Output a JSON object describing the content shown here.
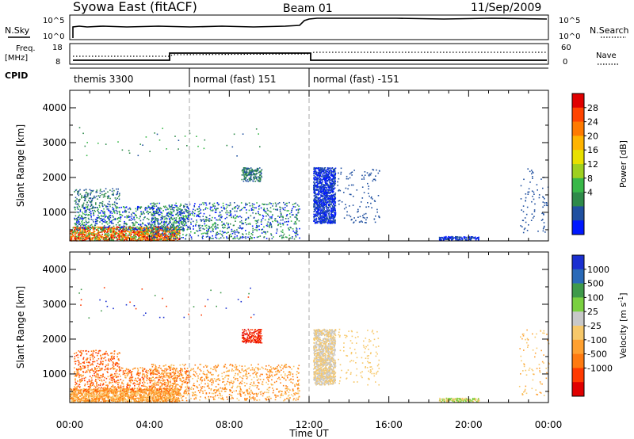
{
  "header": {
    "title": "Syowa East (fitACF)",
    "beam": "Beam 01",
    "date": "11/Sep/2009"
  },
  "top_panels": {
    "nsky_label": "N.Sky",
    "nsearch_label": "N.Search",
    "count_ticks_left": [
      "10^5",
      "10^0"
    ],
    "count_ticks_right": [
      "10^5",
      "10^0"
    ],
    "freq_label": "Freq.",
    "freq_unit": "[MHz]",
    "freq_ticks": [
      "18",
      "8"
    ],
    "nave_label": "Nave",
    "nave_ticks": [
      "60",
      "0"
    ],
    "cpid_label": "CPID",
    "modes": [
      {
        "name": "themis 3300",
        "start_h": 0,
        "end_h": 6
      },
      {
        "name": "normal (fast) 151",
        "start_h": 6,
        "end_h": 12
      },
      {
        "name": "normal (fast) -151",
        "start_h": 12,
        "end_h": 24
      }
    ]
  },
  "chart_data": [
    {
      "type": "heatmap",
      "name": "power",
      "ylabel": "Slant Range [km]",
      "xlabel": "Time UT",
      "y_ticks": [
        "1000",
        "2000",
        "3000",
        "4000"
      ],
      "ylim": [
        180,
        4500
      ],
      "xlim_hours": [
        0,
        24
      ],
      "x_ticks": [
        "00:00",
        "04:00",
        "08:00",
        "12:00",
        "16:00",
        "20:00",
        "00:00"
      ],
      "colorbar_label": "Power [dB]",
      "colorbar_ticks": [
        "28",
        "24",
        "20",
        "16",
        "12",
        "8",
        "4"
      ],
      "colorbar_colors": [
        "#e00000",
        "#ff4400",
        "#ff7a00",
        "#ffb400",
        "#e8e000",
        "#9ed020",
        "#38b848",
        "#2e8a4a",
        "#2050a0",
        "#0018ff"
      ],
      "mode_change_hours": [
        6,
        12
      ]
    },
    {
      "type": "heatmap",
      "name": "velocity",
      "ylabel": "Slant Range [km]",
      "xlabel": "Time UT",
      "y_ticks": [
        "1000",
        "2000",
        "3000",
        "4000"
      ],
      "ylim": [
        180,
        4500
      ],
      "xlim_hours": [
        0,
        24
      ],
      "x_ticks": [
        "00:00",
        "04:00",
        "08:00",
        "12:00",
        "16:00",
        "20:00",
        "00:00"
      ],
      "colorbar_label": "Velocity [m s",
      "colorbar_label_sup": "-1",
      "colorbar_label_end": "]",
      "colorbar_ticks": [
        "1000",
        "500",
        "100",
        "25",
        "-25",
        "-100",
        "-500",
        "-1000"
      ],
      "colorbar_colors": [
        "#1a2fd0",
        "#2a6ab8",
        "#3f9a4a",
        "#7ad040",
        "#c8c8c8",
        "#f7c86a",
        "#ffa030",
        "#ff7a10",
        "#ff3a00",
        "#e00000"
      ],
      "mode_change_hours": [
        6,
        12
      ]
    }
  ],
  "x_axis_title": "Time UT"
}
